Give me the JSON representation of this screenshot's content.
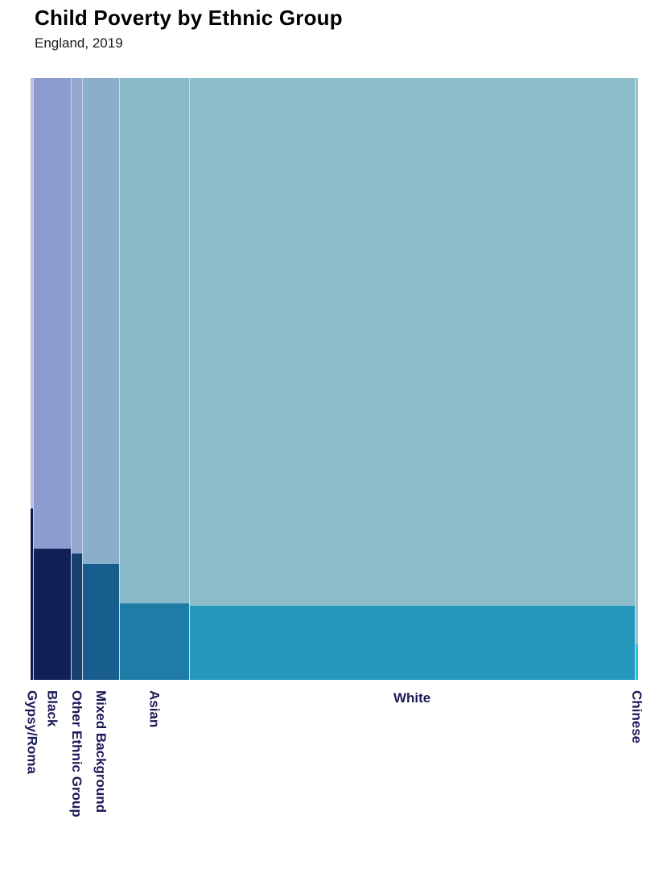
{
  "header": {
    "title": "Child Poverty by Ethnic Group",
    "subtitle": "England, 2019"
  },
  "chart_data": {
    "type": "bar",
    "variant": "marimekko",
    "title": "Child Poverty by Ethnic Group",
    "subtitle": "England, 2019",
    "x_encoding": "share of child population (bar width, %)",
    "y_encoding": "child poverty rate (dark segment height, % of full axis)",
    "ylim": [
      0,
      100
    ],
    "grid": false,
    "legend": false,
    "categories": [
      "Gypsy/Roma",
      "Black",
      "Other Ethnic Group",
      "Mixed Background",
      "Asian",
      "White",
      "Chinese"
    ],
    "bars": [
      {
        "label": "Gypsy/Roma",
        "width_pct": 0.4,
        "poverty_rate_pct": 28.5,
        "color_dark": "#0d1c4d",
        "color_light": "#bcbfe2",
        "label_rotated": true
      },
      {
        "label": "Black",
        "width_pct": 6.2,
        "poverty_rate_pct": 21.8,
        "color_dark": "#102157",
        "color_light": "#8c9cce",
        "label_rotated": true
      },
      {
        "label": "Other Ethnic Group",
        "width_pct": 1.9,
        "poverty_rate_pct": 21.0,
        "color_dark": "#173f70",
        "color_light": "#93a7cf",
        "label_rotated": true
      },
      {
        "label": "Mixed Background",
        "width_pct": 6.1,
        "poverty_rate_pct": 19.3,
        "color_dark": "#175d8e",
        "color_light": "#8baecc",
        "label_rotated": true
      },
      {
        "label": "Asian",
        "width_pct": 11.5,
        "poverty_rate_pct": 12.7,
        "color_dark": "#1e7ca6",
        "color_light": "#8abac9",
        "label_rotated": true
      },
      {
        "label": "White",
        "width_pct": 73.4,
        "poverty_rate_pct": 12.3,
        "color_dark": "#2499bd",
        "color_light": "#8cbdc9",
        "label_rotated": false
      },
      {
        "label": "Chinese",
        "width_pct": 0.5,
        "poverty_rate_pct": 5.9,
        "color_dark": "#2ec0dc",
        "color_light": "#95c6d0",
        "label_rotated": true
      }
    ],
    "label_color": "#1a1a55",
    "separator_color": "rgba(255,255,255,0.5)"
  }
}
